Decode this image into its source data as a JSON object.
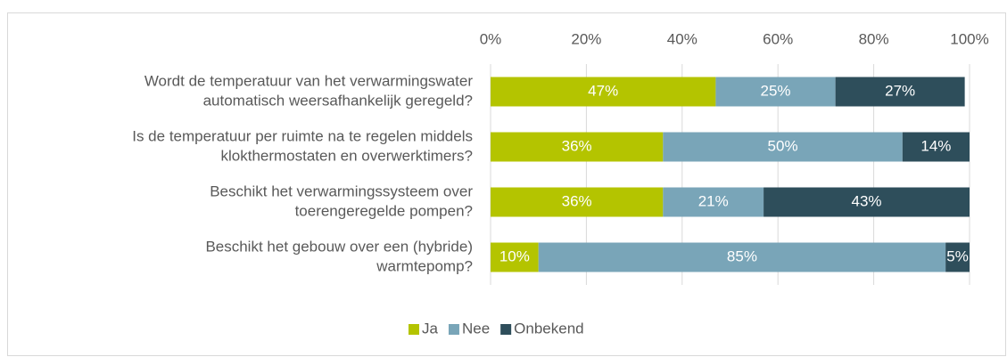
{
  "chart_data": {
    "type": "stacked-barh",
    "categories": [
      [
        "Wordt de temperatuur van het verwarmingswater",
        "automatisch weersafhankelijk geregeld?"
      ],
      [
        "Is de temperatuur per ruimte na te regelen middels",
        "klokthermostaten en overwerktimers?"
      ],
      [
        "Beschikt het verwarmingssysteem over",
        "toerengeregelde pompen?"
      ],
      [
        "Beschikt het gebouw over een (hybride)",
        "warmtepomp?"
      ]
    ],
    "series": [
      {
        "name": "Ja",
        "color": "#b4c400",
        "values": [
          47,
          36,
          36,
          10
        ],
        "value_labels": [
          "47%",
          "36%",
          "36%",
          "10%"
        ]
      },
      {
        "name": "Nee",
        "color": "#79a5b8",
        "values": [
          25,
          50,
          21,
          85
        ],
        "value_labels": [
          "25%",
          "50%",
          "21%",
          "85%"
        ]
      },
      {
        "name": "Onbekend",
        "color": "#2e4e5b",
        "values": [
          27,
          14,
          43,
          5
        ],
        "value_labels": [
          "27%",
          "14%",
          "43%",
          "5%"
        ]
      }
    ],
    "xlim": [
      0,
      100
    ],
    "xticks": [
      {
        "value": 0,
        "label": "0%"
      },
      {
        "value": 20,
        "label": "20%"
      },
      {
        "value": 40,
        "label": "40%"
      },
      {
        "value": 60,
        "label": "60%"
      },
      {
        "value": 80,
        "label": "80%"
      },
      {
        "value": 100,
        "label": "100%"
      }
    ],
    "grid": true,
    "legend": "bottom"
  }
}
